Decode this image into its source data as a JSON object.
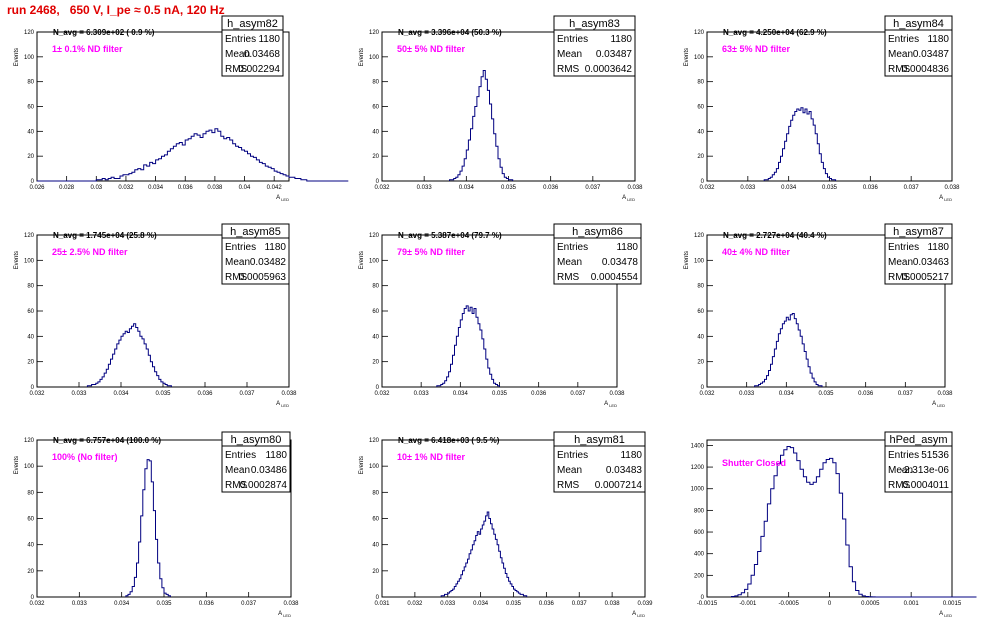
{
  "title": "run 2468,   650 V, I_pe ≈ 0.5 nA, 120 Hz",
  "colors": {
    "title": "#e00000",
    "histogram": "#000080",
    "annotation": "#ff00ff"
  },
  "chart_data": [
    {
      "type": "histogram",
      "hist_name": "h_asym82",
      "annotation_avg": "N_avg = 6.309e+02 ( 0.9 %)",
      "annotation_filter": "1± 0.1% ND filter",
      "stats": {
        "entries": "1180",
        "mean": "0.03468",
        "rms": "0.002294"
      },
      "xlabel": "A_LED",
      "ylabel": "Events",
      "xlim": [
        0.026,
        0.043
      ],
      "ylim": [
        0,
        120
      ],
      "x_ticks": [
        0.026,
        0.028,
        0.03,
        0.032,
        0.034,
        0.036,
        0.038,
        0.04,
        0.042
      ],
      "y_ticks": [
        0,
        20,
        40,
        60,
        80,
        100,
        120
      ],
      "bin_start": 0.026,
      "bin_width": 0.0002,
      "counts": [
        0,
        0,
        0,
        0,
        0,
        0,
        0,
        0,
        0,
        0,
        0,
        0,
        0,
        0,
        0,
        0,
        0,
        0,
        0,
        0,
        1,
        1,
        2,
        1,
        2,
        3,
        2,
        2,
        4,
        5,
        5,
        6,
        7,
        9,
        10,
        9,
        13,
        12,
        15,
        14,
        17,
        18,
        20,
        21,
        24,
        26,
        28,
        30,
        31,
        29,
        33,
        34,
        36,
        38,
        37,
        35,
        38,
        40,
        41,
        39,
        42,
        40,
        36,
        34,
        35,
        33,
        30,
        28,
        27,
        25,
        24,
        22,
        20,
        19,
        17,
        15,
        14,
        12,
        11,
        10,
        8,
        7,
        6,
        5,
        4,
        3,
        3,
        2,
        2,
        1,
        1,
        0,
        0,
        0,
        0,
        0,
        0,
        0,
        0,
        0,
        0,
        0,
        0,
        0,
        0
      ]
    },
    {
      "type": "histogram",
      "hist_name": "h_asym83",
      "annotation_avg": "N_avg = 3.396e+04 (50.3 %)",
      "annotation_filter": "50± 5% ND filter",
      "stats": {
        "entries": "1180",
        "mean": "0.03487",
        "rms": "0.0003642"
      },
      "xlabel": "A_LED",
      "ylabel": "Events",
      "xlim": [
        0.032,
        0.038
      ],
      "ylim": [
        0,
        120
      ],
      "x_ticks": [
        0.032,
        0.033,
        0.034,
        0.035,
        0.036,
        0.037,
        0.038
      ],
      "y_ticks": [
        0,
        20,
        40,
        60,
        80,
        100,
        120
      ],
      "bin_start": 0.0336,
      "bin_width": 5e-05,
      "counts": [
        1,
        1,
        2,
        3,
        5,
        8,
        12,
        18,
        25,
        33,
        42,
        52,
        60,
        68,
        76,
        84,
        89,
        82,
        73,
        62,
        50,
        38,
        28,
        18,
        11,
        6,
        3,
        2,
        1,
        1
      ]
    },
    {
      "type": "histogram",
      "hist_name": "h_asym84",
      "annotation_avg": "N_avg = 4.250e+04 (62.9 %)",
      "annotation_filter": "63± 5% ND filter",
      "stats": {
        "entries": "1180",
        "mean": "0.03487",
        "rms": "0.0004836"
      },
      "xlabel": "A_LED",
      "ylabel": "Events",
      "xlim": [
        0.032,
        0.038
      ],
      "ylim": [
        0,
        120
      ],
      "x_ticks": [
        0.032,
        0.033,
        0.034,
        0.035,
        0.036,
        0.037,
        0.038
      ],
      "y_ticks": [
        0,
        20,
        40,
        60,
        80,
        100,
        120
      ],
      "bin_start": 0.0334,
      "bin_width": 5e-05,
      "counts": [
        1,
        1,
        2,
        3,
        5,
        7,
        10,
        15,
        20,
        26,
        32,
        38,
        44,
        49,
        53,
        56,
        58,
        57,
        59,
        55,
        58,
        54,
        56,
        50,
        45,
        38,
        30,
        22,
        15,
        10,
        6,
        3,
        2,
        1,
        1
      ]
    },
    {
      "type": "histogram",
      "hist_name": "h_asym85",
      "annotation_avg": "N_avg = 1.745e+04 (25.8 %)",
      "annotation_filter": "25± 2.5% ND filter",
      "stats": {
        "entries": "1180",
        "mean": "0.03482",
        "rms": "0.0005963"
      },
      "xlabel": "A_LED",
      "ylabel": "Events",
      "xlim": [
        0.032,
        0.038
      ],
      "ylim": [
        0,
        120
      ],
      "x_ticks": [
        0.032,
        0.033,
        0.034,
        0.035,
        0.036,
        0.037,
        0.038
      ],
      "y_ticks": [
        0,
        20,
        40,
        60,
        80,
        100,
        120
      ],
      "bin_start": 0.0332,
      "bin_width": 5e-05,
      "counts": [
        1,
        1,
        2,
        2,
        3,
        4,
        6,
        8,
        11,
        14,
        18,
        22,
        26,
        30,
        34,
        37,
        40,
        42,
        44,
        43,
        46,
        48,
        50,
        47,
        44,
        40,
        38,
        34,
        30,
        25,
        20,
        16,
        12,
        9,
        6,
        4,
        3,
        2,
        1,
        1
      ]
    },
    {
      "type": "histogram",
      "hist_name": "h_asym86",
      "annotation_avg": "N_avg = 5.387e+04 (79.7 %)",
      "annotation_filter": "79± 5% ND filter",
      "stats": {
        "entries": "1180",
        "mean": "0.03478",
        "rms": "0.0004554"
      },
      "xlabel": "A_LED",
      "ylabel": "Events",
      "xlim": [
        0.032,
        0.038
      ],
      "ylim": [
        0,
        120
      ],
      "x_ticks": [
        0.032,
        0.033,
        0.034,
        0.035,
        0.036,
        0.037,
        0.038
      ],
      "y_ticks": [
        0,
        20,
        40,
        60,
        80,
        100,
        120
      ],
      "bin_start": 0.0334,
      "bin_width": 5e-05,
      "counts": [
        1,
        1,
        2,
        3,
        5,
        8,
        12,
        18,
        25,
        33,
        40,
        47,
        53,
        58,
        62,
        64,
        60,
        63,
        58,
        62,
        55,
        50,
        45,
        38,
        30,
        22,
        15,
        10,
        6,
        3,
        2,
        1
      ]
    },
    {
      "type": "histogram",
      "hist_name": "h_asym87",
      "annotation_avg": "N_avg = 2.727e+04 (40.4 %)",
      "annotation_filter": "40± 4% ND filter",
      "stats": {
        "entries": "1180",
        "mean": "0.03463",
        "rms": "0.0005217"
      },
      "xlabel": "A_LED",
      "ylabel": "Events",
      "xlim": [
        0.032,
        0.038
      ],
      "ylim": [
        0,
        120
      ],
      "x_ticks": [
        0.032,
        0.033,
        0.034,
        0.035,
        0.036,
        0.037,
        0.038
      ],
      "y_ticks": [
        0,
        20,
        40,
        60,
        80,
        100,
        120
      ],
      "bin_start": 0.0332,
      "bin_width": 5e-05,
      "counts": [
        1,
        1,
        2,
        3,
        4,
        6,
        9,
        13,
        18,
        24,
        30,
        36,
        42,
        46,
        50,
        52,
        55,
        53,
        57,
        58,
        54,
        50,
        45,
        40,
        34,
        28,
        22,
        16,
        11,
        7,
        4,
        2,
        1,
        1
      ]
    },
    {
      "type": "histogram",
      "hist_name": "h_asym80",
      "annotation_avg": "N_avg = 6.757e+04 (100.0 %)",
      "annotation_filter": "100% (No filter)",
      "stats": {
        "entries": "1180",
        "mean": "0.03486",
        "rms": "0.0002874"
      },
      "xlabel": "A_LED",
      "ylabel": "Events",
      "xlim": [
        0.032,
        0.038
      ],
      "ylim": [
        0,
        120
      ],
      "x_ticks": [
        0.032,
        0.033,
        0.034,
        0.035,
        0.036,
        0.037,
        0.038
      ],
      "y_ticks": [
        0,
        20,
        40,
        60,
        80,
        100,
        120
      ],
      "bin_start": 0.0341,
      "bin_width": 5e-05,
      "counts": [
        1,
        2,
        4,
        8,
        15,
        26,
        42,
        62,
        82,
        98,
        105,
        104,
        88,
        66,
        44,
        26,
        14,
        7,
        3,
        2,
        1
      ]
    },
    {
      "type": "histogram",
      "hist_name": "h_asym81",
      "annotation_avg": "N_avg = 6.418e+03 ( 9.5 %)",
      "annotation_filter": "10± 1% ND filter",
      "stats": {
        "entries": "1180",
        "mean": "0.03483",
        "rms": "0.0007214"
      },
      "xlabel": "A_LED",
      "ylabel": "Events",
      "xlim": [
        0.031,
        0.039
      ],
      "ylim": [
        0,
        120
      ],
      "x_ticks": [
        0.031,
        0.032,
        0.033,
        0.034,
        0.035,
        0.036,
        0.037,
        0.038,
        0.039
      ],
      "y_ticks": [
        0,
        20,
        40,
        60,
        80,
        100,
        120
      ],
      "bin_start": 0.0328,
      "bin_width": 5e-05,
      "counts": [
        1,
        1,
        2,
        2,
        3,
        4,
        5,
        6,
        8,
        10,
        12,
        14,
        17,
        20,
        23,
        26,
        29,
        33,
        36,
        40,
        43,
        47,
        50,
        48,
        52,
        55,
        58,
        62,
        65,
        60,
        56,
        52,
        48,
        44,
        40,
        35,
        30,
        26,
        22,
        18,
        15,
        12,
        10,
        8,
        6,
        5,
        4,
        3,
        2,
        2,
        1,
        1
      ]
    },
    {
      "type": "histogram",
      "hist_name": "hPed_asym",
      "annotation_avg": "",
      "annotation_filter": "Shutter Closed",
      "stats": {
        "entries": "51536",
        "mean": "-2.313e-06",
        "rms": "0.0004011"
      },
      "xlabel": "A_LED",
      "ylabel": "",
      "xlim": [
        -0.0015,
        0.0015
      ],
      "ylim": [
        0,
        1450
      ],
      "x_ticks": [
        -0.0015,
        -0.001,
        -0.0005,
        0,
        0.0005,
        0.001,
        0.0015
      ],
      "x_tick_labels": [
        "-0.0015",
        "-0.001",
        "-0.0005",
        "0",
        "0.0005",
        "0.001",
        "0.0015"
      ],
      "y_ticks": [
        0,
        200,
        400,
        600,
        800,
        1000,
        1200,
        1400
      ],
      "bin_start": -0.0012,
      "bin_width": 4e-05,
      "counts": [
        5,
        10,
        20,
        40,
        70,
        120,
        200,
        300,
        420,
        560,
        700,
        860,
        1000,
        1120,
        1230,
        1310,
        1360,
        1390,
        1380,
        1330,
        1260,
        1180,
        1110,
        1060,
        1040,
        1060,
        1110,
        1180,
        1240,
        1270,
        1280,
        1240,
        1140,
        960,
        720,
        480,
        280,
        140,
        60,
        25,
        10,
        5,
        2,
        1,
        0,
        0,
        0,
        0,
        0,
        0,
        0,
        0,
        0,
        0,
        0,
        0,
        0,
        0,
        0,
        0,
        0,
        0,
        0,
        0,
        0,
        0,
        0,
        0,
        0,
        0,
        0,
        0,
        0,
        0,
        0
      ]
    }
  ]
}
